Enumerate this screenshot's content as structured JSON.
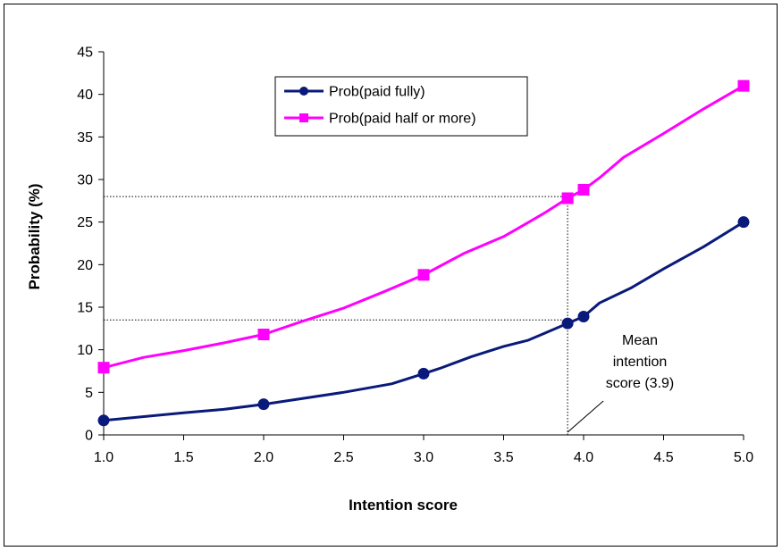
{
  "chart_data": {
    "type": "line",
    "xlabel": "Intention score",
    "ylabel": "Probability (%)",
    "xlim": [
      1.0,
      5.0
    ],
    "ylim": [
      0,
      45
    ],
    "x_ticks": [
      "1.0",
      "1.5",
      "2.0",
      "2.5",
      "3.0",
      "3.5",
      "4.0",
      "4.5",
      "5.0"
    ],
    "y_ticks": [
      "0",
      "5",
      "10",
      "15",
      "20",
      "25",
      "30",
      "35",
      "40",
      "45"
    ],
    "grid": false,
    "legend_position": "top-center",
    "series": [
      {
        "name": "Prob(paid fully)",
        "color": "#0a1a7a",
        "marker": "circle",
        "line": [
          [
            1.0,
            1.7
          ],
          [
            1.5,
            2.6
          ],
          [
            1.75,
            3.0
          ],
          [
            2.0,
            3.6
          ],
          [
            2.5,
            5.0
          ],
          [
            2.8,
            6.0
          ],
          [
            3.0,
            7.2
          ],
          [
            3.1,
            7.8
          ],
          [
            3.3,
            9.2
          ],
          [
            3.5,
            10.4
          ],
          [
            3.65,
            11.1
          ],
          [
            3.75,
            11.9
          ],
          [
            3.9,
            13.1
          ],
          [
            4.0,
            13.9
          ],
          [
            4.1,
            15.5
          ],
          [
            4.3,
            17.3
          ],
          [
            4.5,
            19.5
          ],
          [
            4.75,
            22.1
          ],
          [
            5.0,
            25.0
          ]
        ],
        "points": [
          [
            1.0,
            1.7
          ],
          [
            2.0,
            3.6
          ],
          [
            3.0,
            7.2
          ],
          [
            3.9,
            13.1
          ],
          [
            4.0,
            13.9
          ],
          [
            5.0,
            25.0
          ]
        ]
      },
      {
        "name": "Prob(paid half or more)",
        "color": "#ff00ff",
        "marker": "square",
        "line": [
          [
            1.0,
            7.9
          ],
          [
            1.25,
            9.1
          ],
          [
            1.5,
            9.9
          ],
          [
            1.75,
            10.8
          ],
          [
            2.0,
            11.8
          ],
          [
            2.25,
            13.4
          ],
          [
            2.5,
            14.9
          ],
          [
            2.75,
            16.8
          ],
          [
            3.0,
            18.8
          ],
          [
            3.25,
            21.3
          ],
          [
            3.5,
            23.3
          ],
          [
            3.65,
            24.9
          ],
          [
            3.75,
            26.0
          ],
          [
            3.9,
            27.8
          ],
          [
            4.0,
            28.8
          ],
          [
            4.1,
            30.2
          ],
          [
            4.25,
            32.6
          ],
          [
            4.5,
            35.4
          ],
          [
            4.75,
            38.3
          ],
          [
            5.0,
            41.0
          ]
        ],
        "points": [
          [
            1.0,
            7.9
          ],
          [
            2.0,
            11.8
          ],
          [
            3.0,
            18.8
          ],
          [
            3.9,
            27.8
          ],
          [
            4.0,
            28.8
          ],
          [
            5.0,
            41.0
          ]
        ]
      }
    ],
    "reference_lines": [
      {
        "type": "horizontal",
        "y": 28.0,
        "x_from": 1.0,
        "x_to": 3.9
      },
      {
        "type": "horizontal",
        "y": 13.5,
        "x_from": 1.0,
        "x_to": 3.9
      },
      {
        "type": "vertical",
        "x": 3.9,
        "y_from": 0,
        "y_to": 28.0
      }
    ],
    "annotations": [
      {
        "lines": [
          "Mean",
          "intention",
          "score (3.9)"
        ],
        "points_to_x": 3.9
      }
    ]
  }
}
